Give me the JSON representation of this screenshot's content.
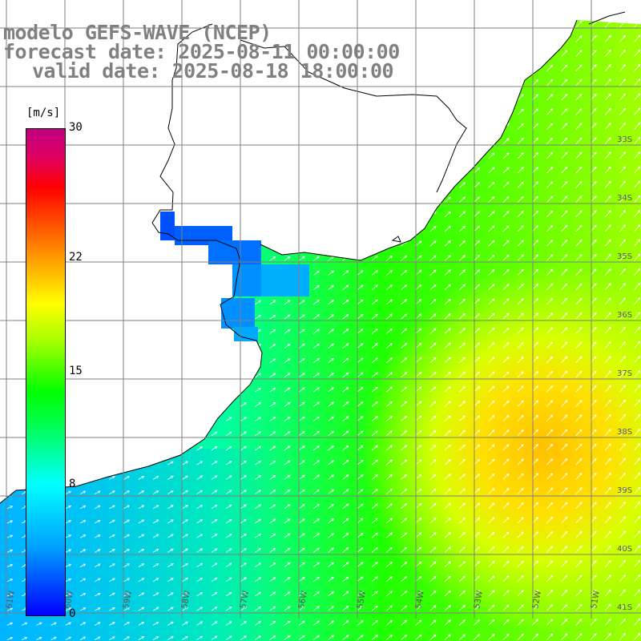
{
  "title": {
    "line1": "modelo GEFS-WAVE (NCEP)",
    "line2": "forecast date: 2025-08-11 00:00:00",
    "line3": "valid date: 2025-08-18 18:00:00"
  },
  "colorbar": {
    "units": "[m/s]",
    "ticks": [
      {
        "label": "30",
        "value": 30
      },
      {
        "label": "22",
        "value": 22
      },
      {
        "label": "15",
        "value": 15
      },
      {
        "label": "8",
        "value": 8
      },
      {
        "label": "0",
        "value": 0
      }
    ],
    "min": 0,
    "max": 30
  },
  "lat_labels": [
    "33S",
    "34S",
    "35S",
    "36S",
    "37S",
    "38S",
    "39S",
    "40S",
    "41S"
  ],
  "lon_labels": [
    "61W",
    "60W",
    "59W",
    "58W",
    "57W",
    "56W",
    "55W",
    "54W",
    "53W",
    "52W",
    "51W"
  ],
  "colors": {
    "land": "#ffffff",
    "grid": "#7f7f7f",
    "coast": "#000000",
    "arrow": "#ffffff"
  }
}
